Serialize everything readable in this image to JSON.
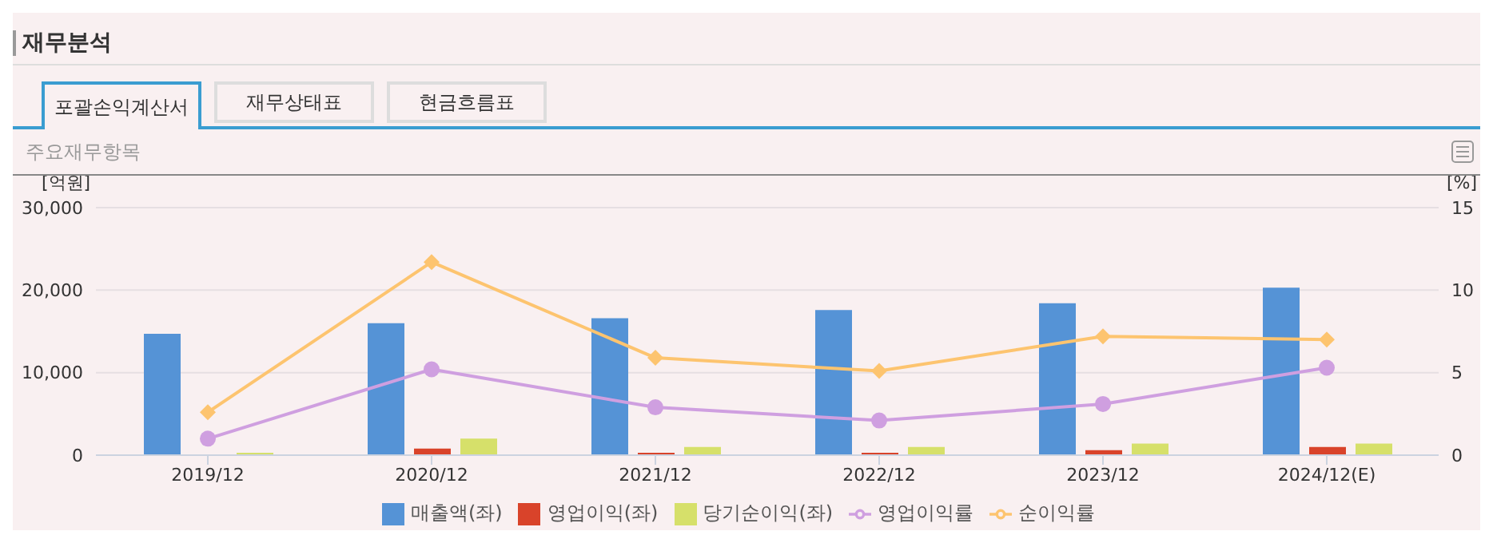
{
  "chart_data": {
    "type": "bar",
    "title": "재무분석",
    "subtitle": "주요재무항목",
    "annotations": [
      "포괄손익계산서",
      "재무상태표",
      "현금흐름표"
    ],
    "ylabel": "[억원]",
    "y2label": "[%]",
    "categories": [
      "2019/12",
      "2020/12",
      "2021/12",
      "2022/12",
      "2023/12",
      "2024/12(E)"
    ],
    "series": [
      {
        "name": "매출액(좌)",
        "color": "#5593d6",
        "values": [
          14700,
          16000,
          16600,
          17600,
          18400,
          20300
        ]
      },
      {
        "name": "영업이익(좌)",
        "color": "#d9432a",
        "values": [
          100,
          800,
          300,
          300,
          600,
          1000
        ]
      },
      {
        "name": "당기순이익(좌)",
        "color": "#d6e06a",
        "values": [
          300,
          2000,
          1000,
          1000,
          1400,
          1400
        ]
      },
      {
        "name": "영업이익률",
        "type": "line",
        "axis": "y2",
        "marker": "circle",
        "color": "#cf9fe0",
        "values": [
          1.0,
          5.2,
          2.9,
          2.1,
          3.1,
          5.3
        ]
      },
      {
        "name": "순이익률",
        "type": "line",
        "axis": "y2",
        "marker": "diamond",
        "color": "#fdc46f",
        "values": [
          2.6,
          11.7,
          5.9,
          5.1,
          7.2,
          7.0
        ]
      }
    ],
    "ylim": [
      0,
      30000
    ],
    "yticks": [
      {
        "value": 0,
        "label": "0"
      },
      {
        "value": 10000,
        "label": "10,000"
      },
      {
        "value": 20000,
        "label": "20,000"
      },
      {
        "value": 30000,
        "label": "30,000"
      }
    ],
    "y2lim": [
      0,
      15
    ],
    "y2ticks": [
      0,
      5,
      10,
      15
    ],
    "grid": "y",
    "legend": "bottom"
  }
}
